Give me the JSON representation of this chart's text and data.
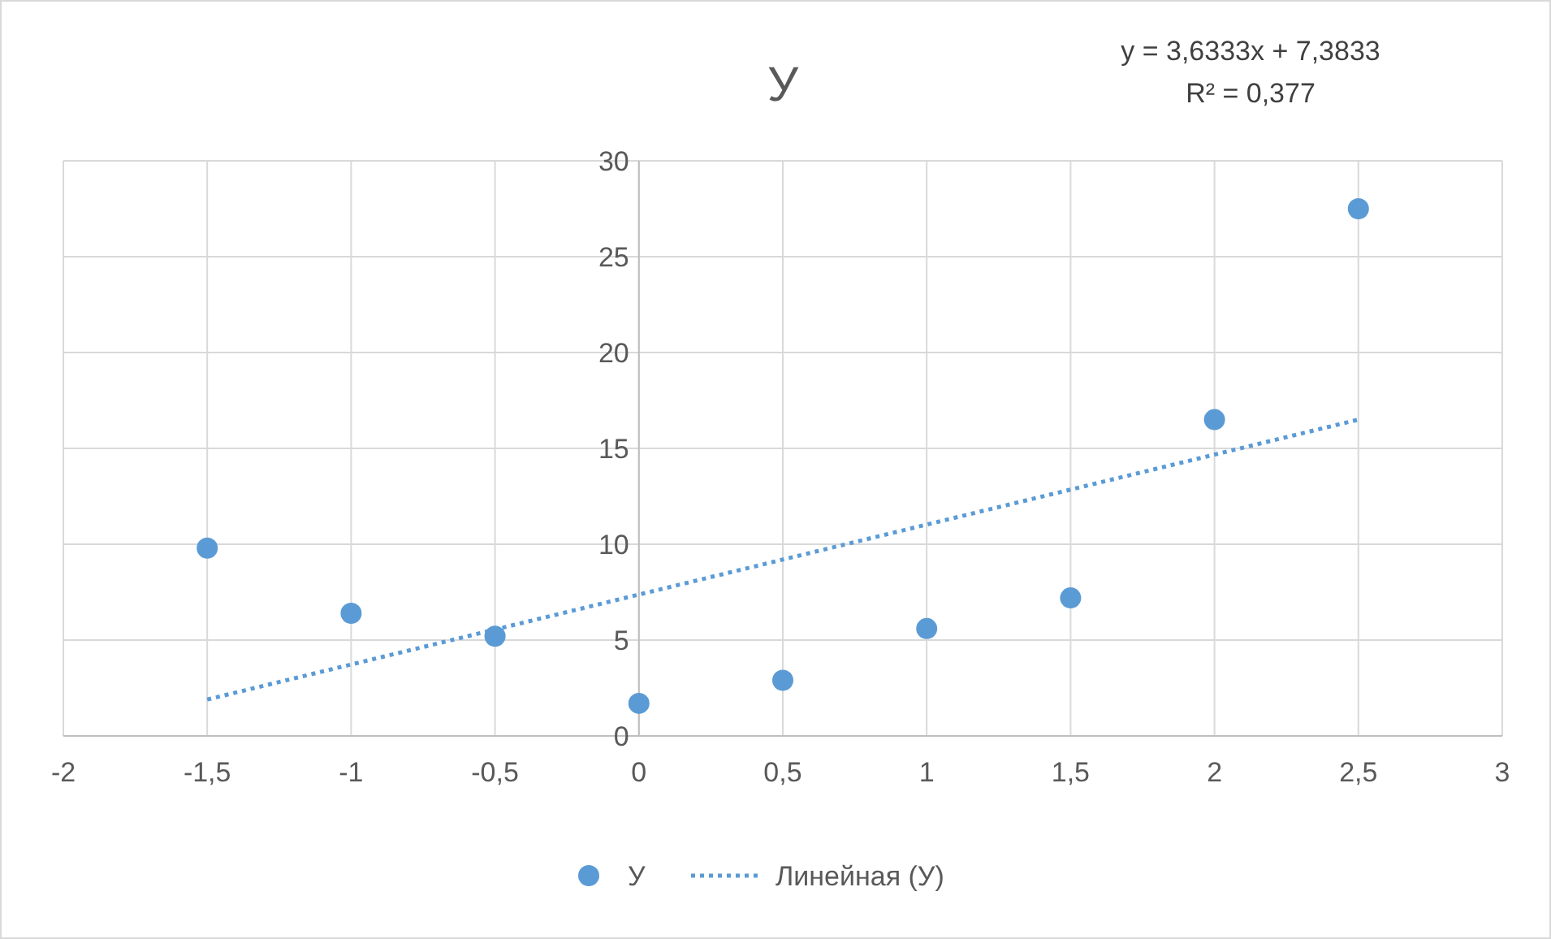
{
  "chart_data": {
    "type": "scatter",
    "title": "У",
    "annotations": [
      "y = 3,6333x + 7,3833",
      "R² = 0,377"
    ],
    "xlim": [
      -2,
      3
    ],
    "xticks": [
      -2,
      {
        "value": -1.5,
        "label": "-1,5"
      },
      -1,
      {
        "value": -0.5,
        "label": "-0,5"
      },
      0,
      {
        "value": 0.5,
        "label": "0,5"
      },
      1,
      {
        "value": 1.5,
        "label": "1,5"
      },
      2,
      {
        "value": 2.5,
        "label": "2,5"
      },
      3
    ],
    "ylim": [
      0,
      30
    ],
    "yticks": [
      0,
      5,
      10,
      15,
      20,
      25,
      30
    ],
    "grid": true,
    "legend": "bottom",
    "marker": "circle",
    "series": [
      {
        "name": "У",
        "color": "#5b9bd5",
        "x": [
          -1.5,
          -1,
          -0.5,
          0,
          0.5,
          1,
          1.5,
          2,
          2.5
        ],
        "values": [
          9.8,
          6.4,
          5.2,
          1.7,
          2.9,
          5.6,
          7.2,
          16.5,
          27.5
        ]
      },
      {
        "name": "Линейная (У)",
        "type": "line",
        "color": "#5b9bd5",
        "line_style": "dotted",
        "marker": "none",
        "x": [
          -1.5,
          2.5
        ],
        "values": [
          1.9,
          16.5
        ]
      }
    ]
  }
}
